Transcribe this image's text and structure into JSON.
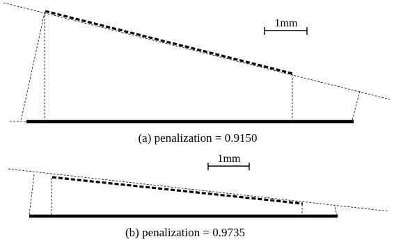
{
  "panel_a": {
    "caption": "(a) penalization = 0.9150",
    "scale_label": "1mm"
  },
  "panel_b": {
    "caption": "(b) penalization = 0.9735",
    "scale_label": "1mm"
  }
}
